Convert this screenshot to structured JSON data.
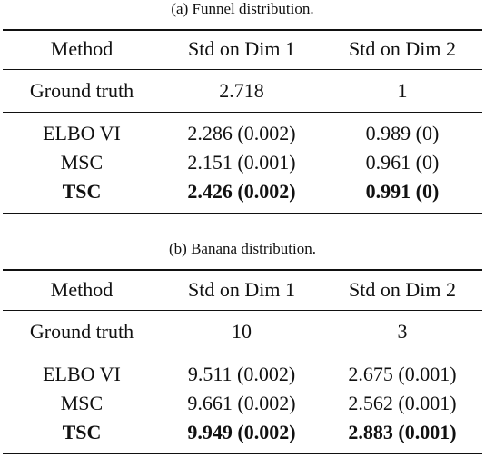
{
  "funnel": {
    "caption": "(a)  Funnel distribution.",
    "header": [
      "Method",
      "Std on Dim 1",
      "Std on Dim 2"
    ],
    "ground_truth": [
      "Ground truth",
      "2.718",
      "1"
    ],
    "rows": [
      [
        "ELBO VI",
        "2.286 (0.002)",
        "0.989 (0)"
      ],
      [
        "MSC",
        "2.151 (0.001)",
        "0.961 (0)"
      ],
      [
        "TSC",
        "2.426 (0.002)",
        "0.991 (0)"
      ]
    ]
  },
  "banana": {
    "caption": "(b)  Banana distribution.",
    "header": [
      "Method",
      "Std on Dim 1",
      "Std on Dim 2"
    ],
    "ground_truth": [
      "Ground truth",
      "10",
      "3"
    ],
    "rows": [
      [
        "ELBO VI",
        "9.511 (0.002)",
        "2.675 (0.001)"
      ],
      [
        "MSC",
        "9.661 (0.002)",
        "2.562 (0.001)"
      ],
      [
        "TSC",
        "9.949 (0.002)",
        "2.883 (0.001)"
      ]
    ]
  }
}
